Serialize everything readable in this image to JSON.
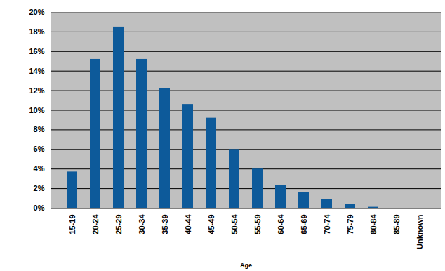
{
  "chart_data": {
    "type": "bar",
    "x_label": "Age",
    "categories": [
      "15-19",
      "20-24",
      "25-29",
      "30-34",
      "35-39",
      "40-44",
      "45-49",
      "50-54",
      "55-59",
      "60-64",
      "65-69",
      "70-74",
      "75-79",
      "80-84",
      "85-89",
      "Unknown"
    ],
    "values": [
      3.7,
      15.2,
      18.5,
      15.2,
      12.2,
      10.6,
      9.2,
      6.0,
      4.0,
      2.3,
      1.6,
      0.9,
      0.4,
      0.1,
      0,
      0
    ],
    "color": "#0d5a9a",
    "ylim": [
      0,
      20
    ],
    "yticks": [
      {
        "value": 0,
        "label": "0%"
      },
      {
        "value": 2,
        "label": "2%"
      },
      {
        "value": 4,
        "label": "4%"
      },
      {
        "value": 6,
        "label": "6%"
      },
      {
        "value": 8,
        "label": "8%"
      },
      {
        "value": 10,
        "label": "10%"
      },
      {
        "value": 12,
        "label": "12%"
      },
      {
        "value": 14,
        "label": "14%"
      },
      {
        "value": 16,
        "label": "16%"
      },
      {
        "value": 18,
        "label": "18%"
      },
      {
        "value": 20,
        "label": "20%"
      }
    ],
    "grid": true
  }
}
